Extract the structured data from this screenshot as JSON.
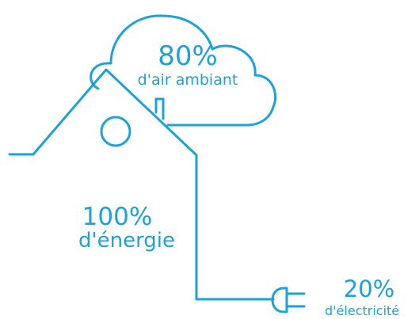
{
  "labels": [
    {
      "value": "80%",
      "caption": "d'air ambiant"
    },
    {
      "value": "100%",
      "caption": "d'énergie"
    },
    {
      "value": "20%",
      "caption": "d'électricité"
    }
  ]
}
